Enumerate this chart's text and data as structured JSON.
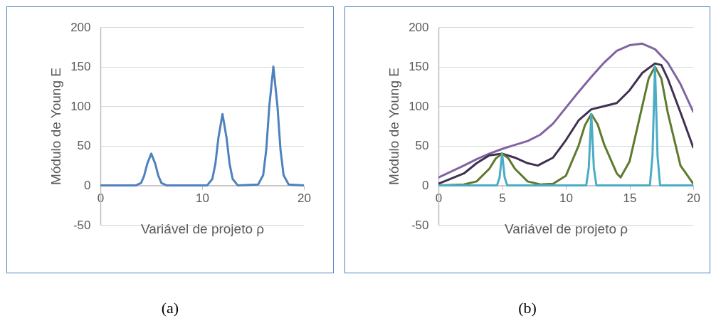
{
  "chart_data": [
    {
      "type": "line",
      "xlabel": "Variável de projeto ρ",
      "ylabel": "Módulo de Young E",
      "xlim": [
        0,
        20
      ],
      "xticks": [
        0,
        10,
        20
      ],
      "ylim": [
        -50,
        200
      ],
      "yticks": [
        -50,
        0,
        50,
        100,
        150,
        200
      ],
      "grid": "y",
      "legend": false,
      "annotations": [
        "(a)"
      ],
      "series": [
        {
          "color": "#4f81bd",
          "x": [
            0,
            3.5,
            4,
            4.3,
            4.6,
            5,
            5.4,
            5.7,
            6,
            6.5,
            10.5,
            11,
            11.3,
            11.6,
            12,
            12.4,
            12.7,
            13,
            13.5,
            15.5,
            16,
            16.3,
            16.6,
            17,
            17.4,
            17.7,
            18,
            18.5,
            20
          ],
          "values": [
            0,
            0,
            3,
            12,
            27,
            40,
            27,
            12,
            3,
            0,
            0,
            8,
            27,
            60,
            90,
            60,
            27,
            8,
            0,
            1,
            13,
            45,
            100,
            150,
            100,
            45,
            13,
            1,
            0
          ]
        }
      ]
    },
    {
      "type": "line",
      "xlabel": "Variável de projeto ρ",
      "ylabel": "Módulo de Young E",
      "xlim": [
        0,
        20
      ],
      "xticks": [
        0,
        5,
        10,
        15,
        20
      ],
      "ylim": [
        -50,
        200
      ],
      "yticks": [
        -50,
        0,
        50,
        100,
        150,
        200
      ],
      "grid": "y",
      "legend": false,
      "annotations": [
        "(b)"
      ],
      "series": [
        {
          "color": "#8064a2",
          "x": [
            0,
            2,
            3,
            4,
            5,
            6,
            7,
            8,
            9,
            10,
            11,
            12,
            13,
            14,
            15,
            16,
            17,
            18,
            19,
            20
          ],
          "values": [
            10,
            25,
            33,
            40,
            46,
            51,
            56,
            64,
            78,
            98,
            118,
            137,
            155,
            170,
            177,
            179,
            172,
            155,
            128,
            93
          ]
        },
        {
          "color": "#403151",
          "x": [
            0,
            2,
            3,
            4,
            5,
            6,
            7,
            7.8,
            9,
            10,
            11,
            12,
            13,
            14,
            15,
            16,
            17,
            17.5,
            18,
            19,
            20
          ],
          "values": [
            2,
            15,
            28,
            38,
            40,
            35,
            28,
            25,
            35,
            57,
            82,
            96,
            100,
            104,
            120,
            142,
            154,
            152,
            135,
            92,
            48
          ]
        },
        {
          "color": "#5f7a2f",
          "x": [
            0,
            2,
            3,
            4,
            4.5,
            5,
            5.5,
            6,
            7,
            8,
            9,
            10,
            11,
            11.5,
            12,
            12.5,
            13,
            14,
            14.3,
            15,
            16,
            16.5,
            17,
            17.5,
            18,
            19,
            20
          ],
          "values": [
            0,
            1,
            5,
            21,
            34,
            40,
            34,
            21,
            5,
            1,
            2,
            12,
            50,
            76,
            90,
            77,
            52,
            15,
            10,
            30,
            100,
            135,
            150,
            135,
            92,
            25,
            2
          ]
        },
        {
          "color": "#4bacc6",
          "x": [
            0,
            4.6,
            4.8,
            5,
            5.2,
            5.4,
            11.6,
            11.8,
            12,
            12.2,
            12.4,
            16.6,
            16.8,
            17,
            17.2,
            17.4,
            20
          ],
          "values": [
            0,
            0,
            10,
            40,
            10,
            0,
            0,
            22,
            90,
            22,
            0,
            0,
            37,
            150,
            37,
            0,
            0
          ]
        }
      ]
    }
  ]
}
